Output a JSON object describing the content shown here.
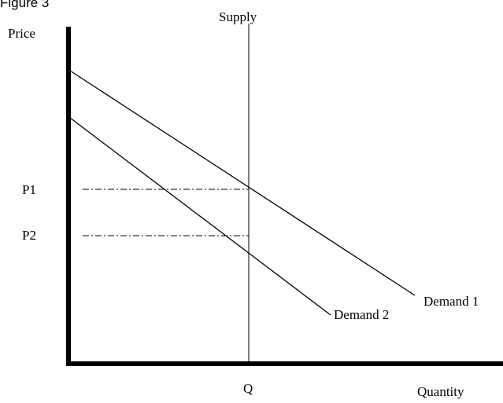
{
  "figure_label": "Figure 3",
  "axes": {
    "y_label": "Price",
    "x_label": "Quantity"
  },
  "lines": {
    "supply": "Supply",
    "demand_1": "Demand 1",
    "demand_2": "Demand 2"
  },
  "prices": [
    "P1",
    "P2"
  ],
  "quantity": "Q"
}
